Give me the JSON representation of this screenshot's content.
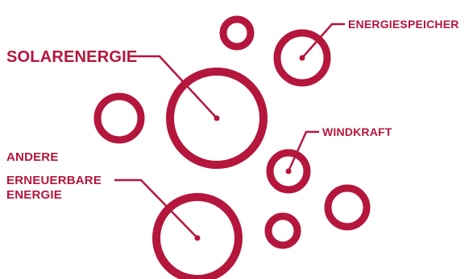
{
  "accent_color": "#b5163c",
  "labels": {
    "solarenergie": "SOLARENERGIE",
    "energiespeicher": "ENERGIESPEICHER",
    "windkraft": "WINDKRAFT",
    "andere_line1": "ANDERE",
    "andere_line2": "ERNEUERBARE",
    "andere_line3": "ENERGIE"
  }
}
